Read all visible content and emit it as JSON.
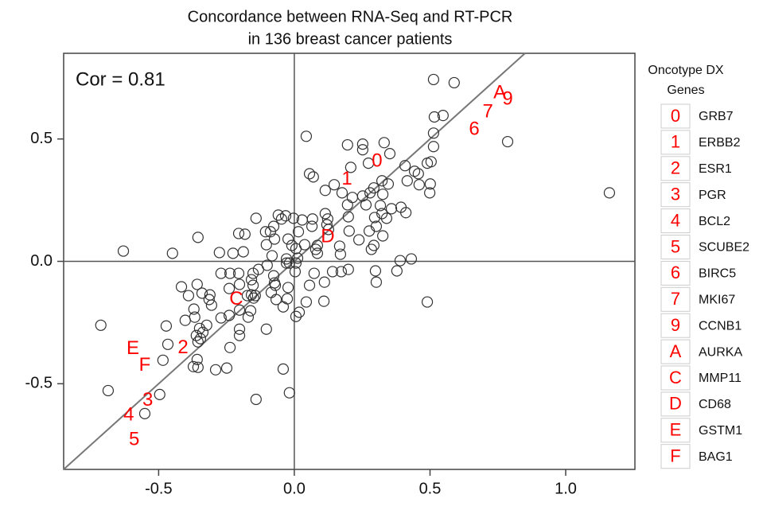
{
  "chart_data": {
    "type": "scatter",
    "title": [
      "Concordance between RNA-Seq and RT-PCR",
      "in 136 breast cancer patients"
    ],
    "annotation": "Cor = 0.81",
    "xlim": [
      -0.85,
      1.255
    ],
    "ylim": [
      -0.85,
      0.85
    ],
    "xticks": [
      -0.5,
      {
        "value": 0,
        "label": "0.0"
      },
      0.5,
      {
        "value": 1,
        "label": "1.0"
      }
    ],
    "yticks": [
      -0.5,
      {
        "value": 0,
        "label": "0.0"
      },
      0.5
    ],
    "color": "#333333",
    "label_color": "#ff0000",
    "legend_title": [
      "Oncotype DX",
      "Genes"
    ],
    "x": [
      0.513,
      0.589,
      0.548,
      0.516,
      0.513,
      0.513,
      0.786,
      1.161,
      0.044,
      0.196,
      0.252,
      0.331,
      0.252,
      0.352,
      0.273,
      0.208,
      0.056,
      0.07,
      0.408,
      0.49,
      0.504,
      0.443,
      0.457,
      0.416,
      0.46,
      0.501,
      0.499,
      0.323,
      0.346,
      0.293,
      0.279,
      0.252,
      0.326,
      0.214,
      0.147,
      0.114,
      0.176,
      0.196,
      0.264,
      0.317,
      0.323,
      0.358,
      0.393,
      0.411,
      0.296,
      0.34,
      0.302,
      0.276,
      0.326,
      0.293,
      0.284,
      0.238,
      0.202,
      0.199,
      0.114,
      0.123,
      0.12,
      0.126,
      0.067,
      0.065,
      0.029,
      -0.003,
      -0.032,
      -0.059,
      -0.047,
      0.015,
      0.038,
      0.085,
      0.085,
      0.079,
      0.167,
      0.17,
      0.39,
      0.431,
      0.378,
      0.299,
      0.302,
      0.49,
      0.199,
      0.173,
      0.141,
      0.111,
      0.073,
      0.056,
      0.109,
      0.044,
      0.018,
      0.006,
      -0.026,
      -0.041,
      -0.023,
      0.003,
      0.012,
      0.006,
      -0.018,
      -0.029,
      -0.029,
      0.006,
      -0.009,
      -0.023,
      -0.073,
      -0.088,
      -0.076,
      -0.106,
      -0.141,
      -0.182,
      -0.103,
      -0.082,
      -0.076,
      -0.073,
      -0.132,
      -0.152,
      -0.158,
      -0.152,
      -0.158,
      -0.144,
      -0.15,
      -0.202,
      -0.205,
      -0.237,
      -0.24,
      -0.27,
      -0.276,
      -0.226,
      -0.188,
      -0.1,
      -0.07,
      -0.085,
      -0.067,
      -0.173,
      -0.161,
      -0.202,
      -0.17,
      -0.202,
      -0.202,
      -0.24,
      -0.27,
      -0.237,
      -0.249,
      -0.103,
      -0.041,
      -0.018,
      -0.141,
      -0.29,
      -0.355,
      -0.372,
      -0.358,
      -0.355,
      -0.361,
      -0.337,
      -0.349,
      -0.323,
      -0.314,
      -0.305,
      -0.311,
      -0.34,
      -0.37,
      -0.39,
      -0.416,
      -0.358,
      -0.367,
      -0.402,
      -0.346,
      -0.472,
      -0.466,
      -0.484,
      -0.496,
      -0.551,
      -0.686,
      -0.713,
      -0.63,
      -0.355,
      -0.449,
      -0.205
    ],
    "y": [
      0.743,
      0.73,
      0.596,
      0.59,
      0.524,
      0.469,
      0.489,
      0.28,
      0.511,
      0.476,
      0.479,
      0.485,
      0.456,
      0.44,
      0.401,
      0.384,
      0.358,
      0.345,
      0.391,
      0.401,
      0.407,
      0.368,
      0.358,
      0.329,
      0.313,
      0.316,
      0.28,
      0.329,
      0.316,
      0.3,
      0.28,
      0.267,
      0.274,
      0.261,
      0.313,
      0.29,
      0.28,
      0.231,
      0.231,
      0.228,
      0.195,
      0.215,
      0.221,
      0.199,
      0.179,
      0.176,
      0.143,
      0.124,
      0.104,
      0.065,
      0.049,
      0.088,
      0.124,
      0.182,
      0.195,
      0.173,
      0.15,
      0.13,
      0.173,
      0.143,
      0.169,
      0.176,
      0.186,
      0.189,
      0.173,
      0.121,
      0.068,
      0.065,
      0.033,
      0.049,
      0.062,
      0.029,
      0.003,
      0.01,
      -0.039,
      -0.039,
      -0.085,
      -0.166,
      -0.033,
      -0.042,
      -0.042,
      -0.085,
      -0.049,
      -0.098,
      -0.163,
      -0.166,
      -0.208,
      -0.225,
      -0.153,
      -0.186,
      -0.107,
      -0.042,
      0.013,
      -0.007,
      -0.007,
      -0.007,
      0.01,
      0.052,
      0.065,
      0.091,
      0.091,
      0.121,
      0.143,
      0.121,
      0.176,
      0.111,
      0.068,
      0.023,
      -0.059,
      -0.088,
      -0.033,
      -0.049,
      -0.075,
      -0.098,
      -0.137,
      -0.14,
      -0.15,
      -0.094,
      -0.049,
      -0.049,
      -0.111,
      -0.049,
      0.036,
      0.033,
      0.039,
      -0.016,
      -0.098,
      -0.127,
      -0.156,
      -0.14,
      -0.202,
      -0.199,
      -0.228,
      -0.277,
      -0.303,
      -0.221,
      -0.231,
      -0.352,
      -0.436,
      -0.277,
      -0.44,
      -0.537,
      -0.564,
      -0.443,
      -0.433,
      -0.43,
      -0.401,
      -0.329,
      -0.303,
      -0.29,
      -0.274,
      -0.261,
      -0.156,
      -0.179,
      -0.137,
      -0.13,
      -0.195,
      -0.14,
      -0.104,
      -0.094,
      -0.228,
      -0.241,
      -0.316,
      -0.264,
      -0.339,
      -0.404,
      -0.544,
      -0.622,
      -0.528,
      -0.261,
      0.042,
      0.098,
      0.033,
      0.114
    ],
    "genes": [
      {
        "key": "0",
        "name": "GRB7",
        "x": 0.305,
        "y": 0.407
      },
      {
        "key": "1",
        "name": "ERBB2",
        "x": 0.194,
        "y": 0.335
      },
      {
        "key": "2",
        "name": "ESR1",
        "x": -0.41,
        "y": -0.355
      },
      {
        "key": "3",
        "name": "PGR",
        "x": -0.54,
        "y": -0.57
      },
      {
        "key": "4",
        "name": "BCL2",
        "x": -0.61,
        "y": -0.63
      },
      {
        "key": "5",
        "name": "SCUBE2",
        "x": -0.59,
        "y": -0.73
      },
      {
        "key": "6",
        "name": "BIRC5",
        "x": 0.663,
        "y": 0.537
      },
      {
        "key": "7",
        "name": "MKI67",
        "x": 0.713,
        "y": 0.609
      },
      {
        "key": "9",
        "name": "CCNB1",
        "x": 0.786,
        "y": 0.661
      },
      {
        "key": "A",
        "name": "AURKA",
        "x": 0.757,
        "y": 0.687
      },
      {
        "key": "C",
        "name": "MMP11",
        "x": -0.214,
        "y": -0.156
      },
      {
        "key": "D",
        "name": "CD68",
        "x": 0.123,
        "y": 0.098
      },
      {
        "key": "E",
        "name": "GSTM1",
        "x": -0.595,
        "y": -0.358
      },
      {
        "key": "F",
        "name": "BAG1",
        "x": -0.551,
        "y": -0.427
      }
    ]
  }
}
